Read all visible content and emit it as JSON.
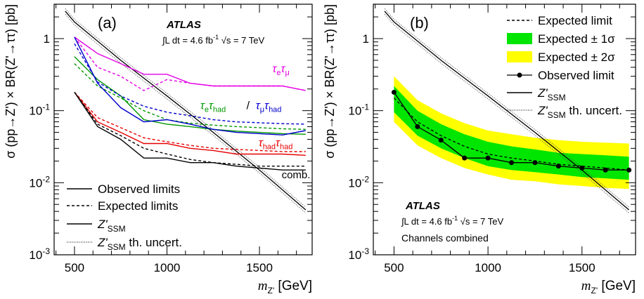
{
  "chart_data": [
    {
      "panel": "(a)",
      "type": "line",
      "title": "",
      "experiment": "ATLAS",
      "lumi": "∫L dt = 4.6 fb",
      "lumi_sup": "-1",
      "energy": "√s = 7 TeV",
      "xlabel": "m",
      "xlabel_sub": "Z'",
      "xlabel_unit": " [GeV]",
      "ylabel": "σ (pp→Z') × BR(Z'→ττ) [pb]",
      "xlim": [
        390,
        1785
      ],
      "ylim": [
        0.001,
        3.0
      ],
      "ylog": true,
      "x_ticks": [
        500,
        1000,
        1500
      ],
      "y_ticks": [
        {
          "v": 0.001,
          "m": "10",
          "e": "-3"
        },
        {
          "v": 0.01,
          "m": "10",
          "e": "-2"
        },
        {
          "v": 0.1,
          "m": "10",
          "e": "-1"
        },
        {
          "v": 1,
          "m": "1",
          "e": ""
        }
      ],
      "legend": [
        "Observed limits",
        "Expected limits",
        "Z'",
        "Z'"
      ],
      "legend_sub": [
        "",
        "",
        "SSM",
        "SSM"
      ],
      "legend_tail": [
        "",
        "",
        "",
        " th. uncert."
      ],
      "channel_labels": [
        {
          "text": "τ",
          "sub": "e",
          "rest": "τ",
          "rest_sub": "μ",
          "color": "#e600e6"
        },
        {
          "text": "τ",
          "sub": "e",
          "rest": "τ",
          "rest_sub": "had",
          "color": "#009900"
        },
        {
          "text": " / ",
          "color": "#000000"
        },
        {
          "text": "τ",
          "sub": "μ",
          "rest": "τ",
          "rest_sub": "had",
          "color": "#0000cc"
        },
        {
          "text": "τ",
          "sub": "had",
          "rest": "τ",
          "rest_sub": "had",
          "color": "#e60000"
        },
        {
          "text": "comb.",
          "color": "#000000"
        }
      ],
      "x": [
        500,
        625,
        750,
        875,
        1000,
        1125,
        1250,
        1375,
        1500,
        1625,
        1750
      ],
      "series": [
        {
          "name": "τeτμ",
          "kind": "observed",
          "color": "#e600e6",
          "values": [
            1.05,
            0.62,
            0.45,
            0.32,
            0.32,
            0.24,
            0.22,
            0.22,
            0.22,
            0.22,
            0.19
          ]
        },
        {
          "name": "τeτμ",
          "kind": "expected",
          "color": "#e600e6",
          "values": [
            1.05,
            0.4,
            0.3,
            0.19,
            0.27,
            0.24,
            0.22,
            0.22,
            0.22,
            0.22,
            0.19
          ]
        },
        {
          "name": "τeτhad",
          "kind": "observed",
          "color": "#009900",
          "values": [
            0.56,
            0.27,
            0.16,
            0.075,
            0.065,
            0.06,
            0.055,
            0.052,
            0.05,
            0.048,
            0.047
          ]
        },
        {
          "name": "τeτhad",
          "kind": "expected",
          "color": "#009900",
          "values": [
            0.45,
            0.22,
            0.15,
            0.1,
            0.075,
            0.067,
            0.063,
            0.06,
            0.058,
            0.056,
            0.055
          ]
        },
        {
          "name": "τμτhad",
          "kind": "observed",
          "color": "#0000cc",
          "values": [
            1.05,
            0.24,
            0.11,
            0.07,
            0.075,
            0.065,
            0.055,
            0.05,
            0.048,
            0.046,
            0.053
          ]
        },
        {
          "name": "τμτhad",
          "kind": "expected",
          "color": "#0000cc",
          "values": [
            0.85,
            0.25,
            0.16,
            0.115,
            0.095,
            0.085,
            0.075,
            0.07,
            0.068,
            0.066,
            0.065
          ]
        },
        {
          "name": "τhadτhad",
          "kind": "observed",
          "color": "#e60000",
          "values": [
            0.18,
            0.07,
            0.05,
            0.035,
            0.035,
            0.03,
            0.028,
            0.025,
            0.025,
            0.025,
            0.024
          ]
        },
        {
          "name": "τhadτhad",
          "kind": "expected",
          "color": "#e60000",
          "values": [
            0.18,
            0.08,
            0.058,
            0.042,
            0.037,
            0.033,
            0.03,
            0.029,
            0.028,
            0.027,
            0.027
          ]
        },
        {
          "name": "comb.",
          "kind": "observed",
          "color": "#000000",
          "values": [
            0.18,
            0.06,
            0.04,
            0.022,
            0.022,
            0.019,
            0.019,
            0.017,
            0.016,
            0.015,
            0.015
          ]
        },
        {
          "name": "comb.",
          "kind": "expected",
          "color": "#000000",
          "values": [
            0.18,
            0.065,
            0.045,
            0.03,
            0.025,
            0.021,
            0.019,
            0.018,
            0.017,
            0.017,
            0.017
          ]
        }
      ],
      "zssm": {
        "x": [
          450,
          500,
          750,
          1000,
          1250,
          1500,
          1750
        ],
        "values": [
          2.4,
          1.7,
          0.5,
          0.16,
          0.05,
          0.015,
          0.0042
        ],
        "band": 0.09
      }
    },
    {
      "panel": "(b)",
      "type": "line",
      "title": "",
      "experiment": "ATLAS",
      "lumi": "∫L dt = 4.6 fb",
      "lumi_sup": "-1",
      "energy": "√s = 7 TeV",
      "note": "Channels combined",
      "xlabel": "m",
      "xlabel_sub": "Z'",
      "xlabel_unit": " [GeV]",
      "ylabel": "σ (pp→Z') × BR(Z'→ττ) [pb]",
      "xlim": [
        390,
        1785
      ],
      "ylim": [
        0.001,
        3.0
      ],
      "ylog": true,
      "x_ticks": [
        500,
        1000,
        1500
      ],
      "y_ticks": [
        {
          "v": 0.001,
          "m": "10",
          "e": "-3"
        },
        {
          "v": 0.01,
          "m": "10",
          "e": "-2"
        },
        {
          "v": 0.1,
          "m": "10",
          "e": "-1"
        },
        {
          "v": 1,
          "m": "1",
          "e": ""
        }
      ],
      "legend": [
        "Expected limit",
        "Expected ± 1σ",
        "Expected ± 2σ",
        "Observed limit",
        "Z'",
        "Z'"
      ],
      "legend_sub": [
        "",
        "",
        "",
        "",
        "SSM",
        "SSM"
      ],
      "legend_tail": [
        "",
        "",
        "",
        "",
        "",
        " th. uncert."
      ],
      "band_colors": {
        "one_sigma": "#00e600",
        "two_sigma": "#ffff00"
      },
      "x": [
        500,
        625,
        750,
        875,
        1000,
        1125,
        1250,
        1375,
        1500,
        1625,
        1750
      ],
      "observed": [
        0.18,
        0.06,
        0.039,
        0.022,
        0.022,
        0.019,
        0.019,
        0.017,
        0.016,
        0.015,
        0.015
      ],
      "expected": [
        0.15,
        0.07,
        0.045,
        0.032,
        0.025,
        0.022,
        0.02,
        0.018,
        0.017,
        0.016,
        0.015
      ],
      "one_sigma": {
        "lo": [
          0.095,
          0.045,
          0.03,
          0.022,
          0.017,
          0.015,
          0.014,
          0.013,
          0.012,
          0.0115,
          0.011
        ],
        "hi": [
          0.22,
          0.1,
          0.065,
          0.047,
          0.037,
          0.032,
          0.029,
          0.026,
          0.025,
          0.024,
          0.023
        ]
      },
      "two_sigma": {
        "lo": [
          0.07,
          0.033,
          0.022,
          0.016,
          0.013,
          0.011,
          0.0105,
          0.0095,
          0.009,
          0.0085,
          0.0082
        ],
        "hi": [
          0.3,
          0.14,
          0.092,
          0.067,
          0.053,
          0.047,
          0.042,
          0.039,
          0.037,
          0.036,
          0.035
        ]
      },
      "zssm": {
        "x": [
          450,
          500,
          750,
          1000,
          1250,
          1500,
          1750
        ],
        "values": [
          2.4,
          1.7,
          0.5,
          0.16,
          0.05,
          0.015,
          0.0042
        ],
        "band": 0.09
      }
    }
  ]
}
